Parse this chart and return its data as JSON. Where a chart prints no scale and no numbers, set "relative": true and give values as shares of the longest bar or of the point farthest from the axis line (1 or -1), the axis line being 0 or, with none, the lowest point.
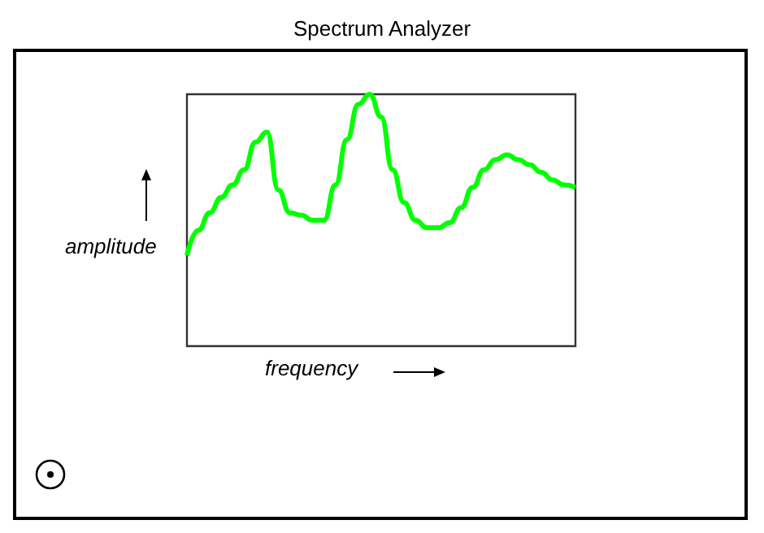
{
  "chart_data": {
    "type": "line",
    "title": "Spectrum Analyzer",
    "xlabel": "frequency",
    "ylabel": "amplitude",
    "relative": true,
    "categories": [
      null,
      null,
      null,
      null,
      null,
      null,
      null,
      null,
      null,
      null,
      null,
      null,
      null,
      null,
      null,
      null,
      null,
      null,
      null,
      null,
      null,
      null,
      null,
      null,
      null,
      null,
      null,
      null,
      null,
      null,
      null,
      null,
      null,
      null,
      null
    ],
    "series": [
      {
        "color": "#00ff00",
        "values": [
          0.36,
          0.46,
          0.53,
          0.59,
          0.64,
          0.7,
          0.81,
          0.85,
          0.62,
          0.53,
          0.52,
          0.5,
          0.5,
          0.64,
          0.82,
          0.96,
          1,
          0.91,
          0.7,
          0.57,
          0.5,
          0.47,
          0.47,
          0.49,
          0.55,
          0.63,
          0.7,
          0.74,
          0.76,
          0.74,
          0.72,
          0.69,
          0.66,
          0.64,
          0.63
        ]
      }
    ]
  }
}
